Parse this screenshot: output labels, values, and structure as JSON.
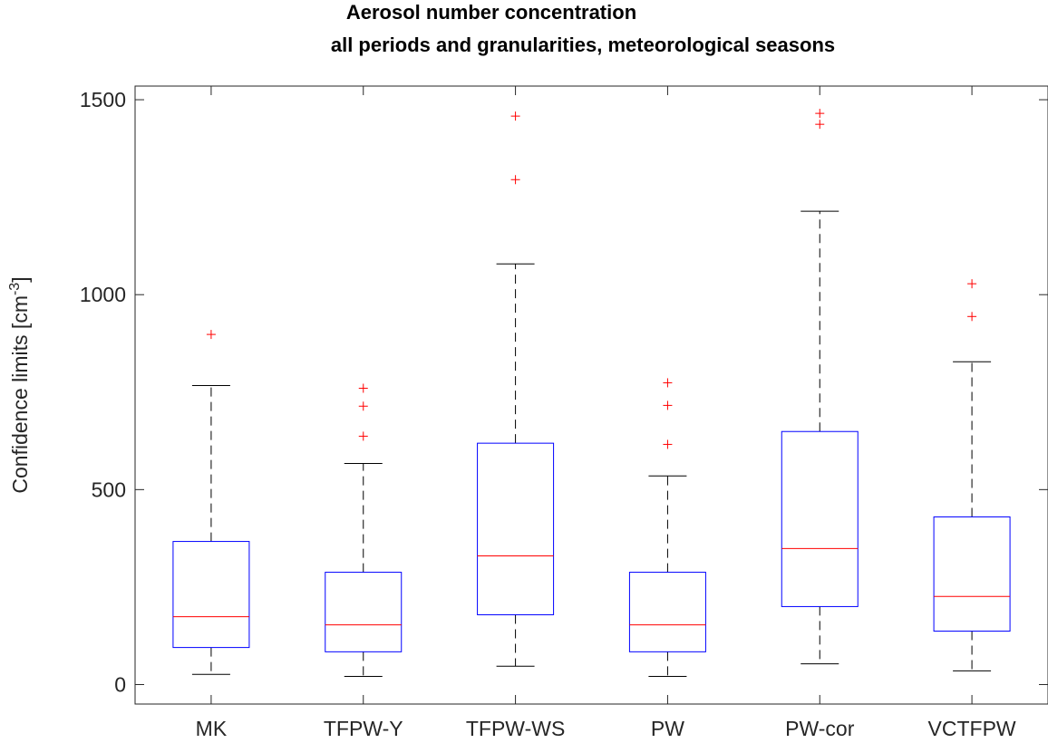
{
  "chart_data": {
    "type": "box",
    "title_line1": "Aerosol number concentration",
    "title_line2": "all periods and granularities, meteorological seasons",
    "ylabel": "Confidence limits [cm",
    "ylabel_sup": "-3",
    "ylabel_end": "]",
    "xlabel": "",
    "ylim": [
      -50,
      1535
    ],
    "yticks": [
      0,
      500,
      1000,
      1500
    ],
    "grid": false,
    "colors": {
      "box": "#0000ff",
      "median": "#ff0000",
      "whisker": "#000000",
      "outlier": "#ff0000"
    },
    "categories": [
      "MK",
      "TFPW-Y",
      "TFPW-WS",
      "PW",
      "PW-cor",
      "VCTFPW"
    ],
    "boxes": [
      {
        "whisker_low": 26,
        "q1": 95,
        "median": 174,
        "q3": 367,
        "whisker_high": 767,
        "outliers": [
          898
        ]
      },
      {
        "whisker_low": 21,
        "q1": 84,
        "median": 153,
        "q3": 288,
        "whisker_high": 567,
        "outliers": [
          637,
          714,
          760
        ]
      },
      {
        "whisker_low": 47,
        "q1": 179,
        "median": 330,
        "q3": 619,
        "whisker_high": 1079,
        "outliers": [
          1295,
          1458
        ]
      },
      {
        "whisker_low": 21,
        "q1": 84,
        "median": 153,
        "q3": 288,
        "whisker_high": 535,
        "outliers": [
          616,
          716,
          774
        ]
      },
      {
        "whisker_low": 53,
        "q1": 200,
        "median": 349,
        "q3": 649,
        "whisker_high": 1214,
        "outliers": [
          1437,
          1465
        ]
      },
      {
        "whisker_low": 35,
        "q1": 137,
        "median": 226,
        "q3": 430,
        "whisker_high": 828,
        "outliers": [
          944,
          1028
        ]
      }
    ]
  }
}
